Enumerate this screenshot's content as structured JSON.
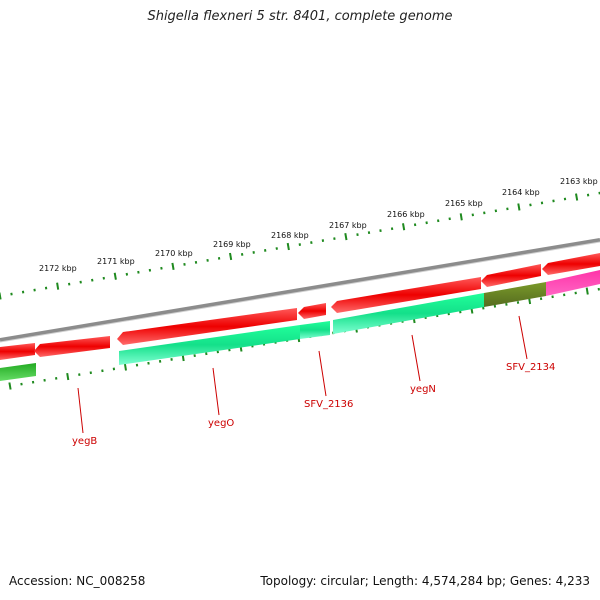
{
  "title": "Shigella flexneri 5 str. 8401, complete genome",
  "footer": {
    "accession": "Accession: NC_008258",
    "topology": "Topology: circular; Length: 4,574,284 bp; Genes: 4,233"
  },
  "colors": {
    "backbone": "#8a8a8a",
    "ticks": "#1f8a1f",
    "label_text": "#cc0000",
    "feature_forward": "#ff1a1a",
    "feature_cds": "#33ffbb",
    "feature_other": "#6b8e23",
    "feature_pink": "#ff3399",
    "feature_green": "#33bb33"
  },
  "ruler": {
    "tick_labels": [
      "2172 kbp",
      "2171 kbp",
      "2170 kbp",
      "2169 kbp",
      "2168 kbp",
      "2167 kbp",
      "2166 kbp",
      "2165 kbp",
      "2164 kbp",
      "2163 kbp"
    ]
  },
  "genes": [
    {
      "label": "yegB",
      "icon": "gene-feature"
    },
    {
      "label": "yegO",
      "icon": "gene-feature"
    },
    {
      "label": "SFV_2136",
      "icon": "gene-feature"
    },
    {
      "label": "yegN",
      "icon": "gene-feature"
    },
    {
      "label": "SFV_2134",
      "icon": "gene-feature"
    }
  ]
}
